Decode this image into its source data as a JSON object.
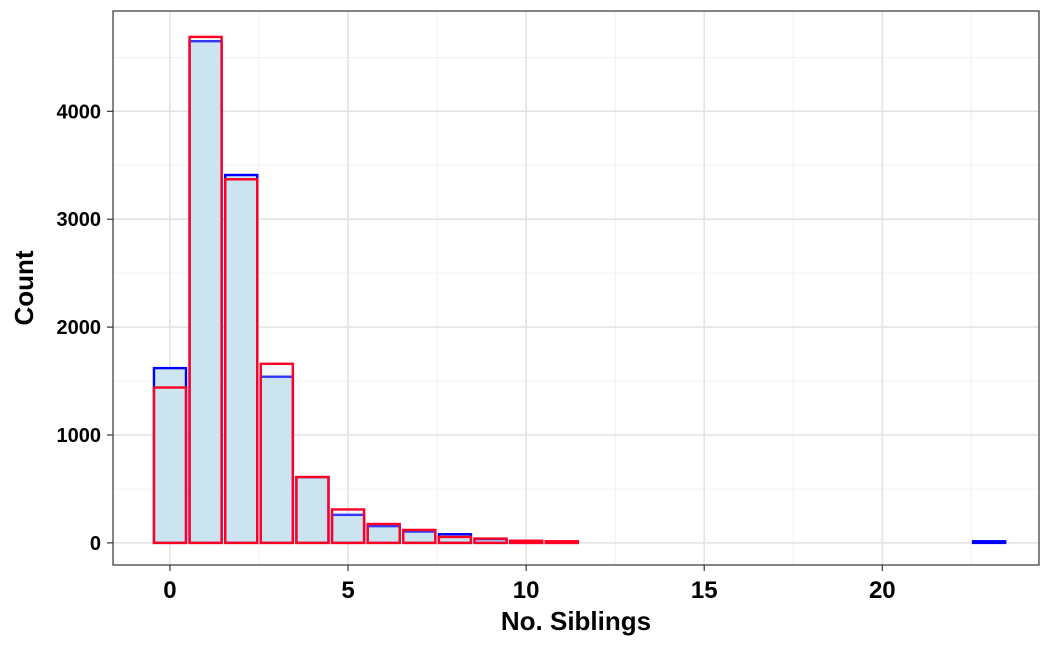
{
  "chart_data": {
    "type": "bar",
    "title": "",
    "xlabel": "No. Siblings",
    "ylabel": "Count",
    "xlim": [
      -1.6,
      24.4
    ],
    "ylim": [
      -205,
      4930
    ],
    "x_ticks": [
      0,
      5,
      10,
      15,
      20
    ],
    "y_ticks": [
      0,
      1000,
      2000,
      3000,
      4000
    ],
    "x_tick_labels": [
      "0",
      "5",
      "10",
      "15",
      "20"
    ],
    "y_tick_labels": [
      "0",
      "1000",
      "2000",
      "3000",
      "4000"
    ],
    "grid": true,
    "bar_fill": "#cde5ef",
    "series": [
      {
        "color": "#0000ff",
        "x": [
          0,
          1,
          2,
          3,
          4,
          5,
          6,
          7,
          8,
          9,
          10,
          11,
          23
        ],
        "values": [
          1620,
          4650,
          3410,
          1540,
          610,
          260,
          155,
          105,
          80,
          35,
          15,
          10,
          15
        ]
      },
      {
        "color": "#ff0022",
        "x": [
          0,
          1,
          2,
          3,
          4,
          5,
          6,
          7,
          8,
          9,
          10,
          11
        ],
        "values": [
          1440,
          4690,
          3370,
          1660,
          610,
          310,
          175,
          120,
          55,
          40,
          20,
          15
        ]
      }
    ]
  }
}
